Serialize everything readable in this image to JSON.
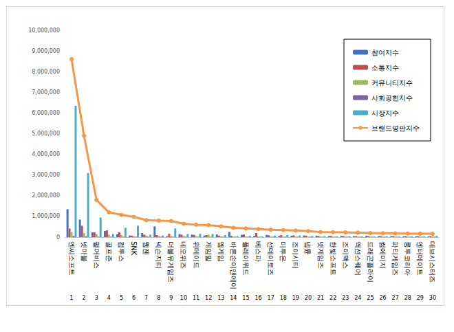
{
  "chart_data": {
    "type": "bar",
    "categories": [
      "엔씨소프트",
      "넷마블",
      "펄어비스",
      "골프존",
      "컴투스",
      "SNK",
      "웹젠",
      "넥슨지티",
      "더블유게임즈",
      "네오위즈",
      "위메이드",
      "게임빌",
      "엠게임",
      "바른손이앤에이",
      "플레이위드",
      "베스파",
      "선데이토즈",
      "미투온",
      "조이시티",
      "넵튠",
      "넷게임즈",
      "한빛소프트",
      "조이맥스",
      "액션스퀘어",
      "드래곤플라이",
      "썸에이지",
      "파티게임즈",
      "룽투코리아",
      "엔터메이트",
      "데브시스터즈"
    ],
    "ranks": [
      1,
      2,
      3,
      4,
      5,
      6,
      7,
      8,
      9,
      10,
      11,
      12,
      13,
      14,
      15,
      16,
      17,
      18,
      19,
      20,
      21,
      22,
      23,
      24,
      25,
      26,
      27,
      28,
      29,
      30
    ],
    "series": [
      {
        "name": "참여지수",
        "type": "bar",
        "color": "#4472c4",
        "values": [
          1350000,
          850000,
          230000,
          300000,
          140000,
          80000,
          200000,
          520000,
          50000,
          150000,
          120000,
          80000,
          130000,
          250000,
          110000,
          60000,
          110000,
          60000,
          70000,
          80000,
          70000,
          60000,
          60000,
          50000,
          60000,
          50000,
          50000,
          40000,
          40000,
          40000
        ]
      },
      {
        "name": "소통지수",
        "type": "bar",
        "color": "#c0504d",
        "values": [
          420000,
          550000,
          230000,
          330000,
          230000,
          70000,
          120000,
          100000,
          160000,
          120000,
          110000,
          100000,
          80000,
          60000,
          130000,
          200000,
          90000,
          100000,
          90000,
          70000,
          60000,
          60000,
          50000,
          50000,
          50000,
          50000,
          50000,
          50000,
          50000,
          50000
        ]
      },
      {
        "name": "커뮤니티지수",
        "type": "bar",
        "color": "#9bbb59",
        "values": [
          250000,
          200000,
          150000,
          120000,
          100000,
          50000,
          80000,
          70000,
          60000,
          60000,
          50000,
          120000,
          50000,
          30000,
          30000,
          30000,
          30000,
          30000,
          30000,
          30000,
          30000,
          30000,
          30000,
          30000,
          30000,
          30000,
          30000,
          30000,
          30000,
          30000
        ]
      },
      {
        "name": "사회공헌지수",
        "type": "bar",
        "color": "#8064a2",
        "values": [
          60000,
          40000,
          20000,
          20000,
          20000,
          20000,
          20000,
          20000,
          20000,
          20000,
          20000,
          20000,
          20000,
          20000,
          20000,
          20000,
          20000,
          20000,
          20000,
          20000,
          20000,
          20000,
          20000,
          20000,
          20000,
          20000,
          20000,
          20000,
          20000,
          20000
        ]
      },
      {
        "name": "시장지수",
        "type": "bar",
        "color": "#4bacc6",
        "values": [
          6350000,
          3100000,
          950000,
          150000,
          450000,
          550000,
          120000,
          80000,
          420000,
          150000,
          160000,
          150000,
          100000,
          50000,
          60000,
          30000,
          80000,
          100000,
          80000,
          60000,
          50000,
          40000,
          50000,
          40000,
          30000,
          40000,
          30000,
          40000,
          40000,
          60000
        ]
      },
      {
        "name": "브랜드평판지수",
        "type": "line",
        "color": "#f79646",
        "marker": "circle",
        "values": [
          8600000,
          4900000,
          1800000,
          1200000,
          1080000,
          980000,
          820000,
          800000,
          780000,
          650000,
          600000,
          580000,
          520000,
          450000,
          420000,
          390000,
          360000,
          340000,
          320000,
          290000,
          250000,
          240000,
          230000,
          220000,
          200000,
          190000,
          180000,
          175000,
          170000,
          165000
        ]
      }
    ],
    "ylim": [
      0,
      10000000
    ],
    "yticks": [
      0,
      {
        "value": 1000000,
        "label": "1,000,000"
      },
      {
        "value": 2000000,
        "label": "2,000,000"
      },
      {
        "value": 3000000,
        "label": "3,000,000"
      },
      {
        "value": 4000000,
        "label": "4,000,000"
      },
      {
        "value": 5000000,
        "label": "5,000,000"
      },
      {
        "value": 6000000,
        "label": "6,000,000"
      },
      {
        "value": 7000000,
        "label": "7,000,000"
      },
      {
        "value": 8000000,
        "label": "8,000,000"
      },
      {
        "value": 9000000,
        "label": "9,000,000"
      },
      {
        "value": 10000000,
        "label": "10,000,000"
      }
    ],
    "grid": false,
    "legend": "top-right"
  }
}
